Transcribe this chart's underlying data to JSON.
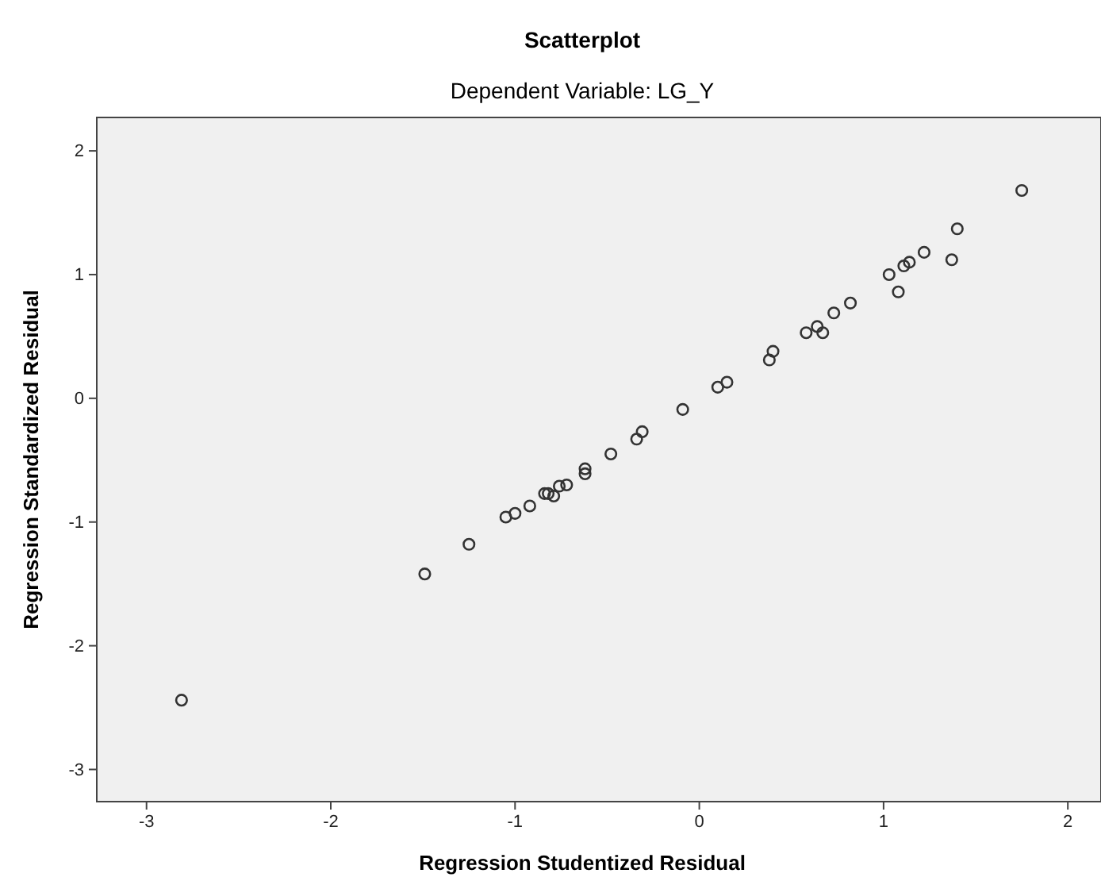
{
  "chart_data": {
    "type": "scatter",
    "title": "Scatterplot",
    "subtitle": "Dependent Variable: LG_Y",
    "xlabel": "Regression Studentized Residual",
    "ylabel": "Regression Standardized Residual",
    "x": [
      -2.81,
      -1.49,
      -1.25,
      -1.05,
      -1.0,
      -0.92,
      -0.84,
      -0.82,
      -0.79,
      -0.76,
      -0.72,
      -0.62,
      -0.62,
      -0.48,
      -0.34,
      -0.31,
      -0.09,
      0.1,
      0.15,
      0.38,
      0.4,
      0.58,
      0.64,
      0.67,
      0.73,
      0.82,
      1.03,
      1.08,
      1.11,
      1.14,
      1.22,
      1.37,
      1.4,
      1.75
    ],
    "values": [
      -2.44,
      -1.42,
      -1.18,
      -0.96,
      -0.93,
      -0.87,
      -0.77,
      -0.77,
      -0.79,
      -0.71,
      -0.7,
      -0.57,
      -0.61,
      -0.45,
      -0.33,
      -0.27,
      -0.09,
      0.09,
      0.13,
      0.31,
      0.38,
      0.53,
      0.58,
      0.53,
      0.69,
      0.77,
      1.0,
      0.86,
      1.07,
      1.1,
      1.18,
      1.12,
      1.37,
      1.68
    ],
    "color": "#333333",
    "marker": "circle",
    "grid": false,
    "xlim": [
      -3.27,
      2.18
    ],
    "ylim": [
      -3.26,
      2.27
    ],
    "xticks": [
      -3,
      -2,
      -1,
      0,
      1,
      2
    ],
    "yticks": [
      -3,
      -2,
      -1,
      0,
      1,
      2
    ]
  }
}
